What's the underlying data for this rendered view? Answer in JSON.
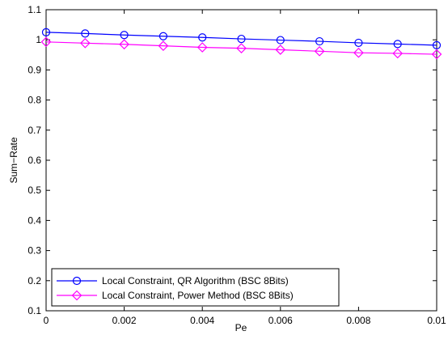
{
  "chart_data": {
    "type": "line",
    "title": "",
    "xlabel": "Pe",
    "ylabel": "Sum−Rate",
    "xlim": [
      0,
      0.01
    ],
    "ylim": [
      0.1,
      1.1
    ],
    "xticks": [
      0,
      0.002,
      0.004,
      0.006,
      0.008,
      0.01
    ],
    "xtick_labels": [
      "0",
      "0.002",
      "0.004",
      "0.006",
      "0.008",
      "0.01"
    ],
    "yticks": [
      0.1,
      0.2,
      0.3,
      0.4,
      0.5,
      0.6,
      0.7,
      0.8,
      0.9,
      1.0,
      1.1
    ],
    "ytick_labels": [
      "0.1",
      "0.2",
      "0.3",
      "0.4",
      "0.5",
      "0.6",
      "0.7",
      "0.8",
      "0.9",
      "1",
      "1.1"
    ],
    "grid": false,
    "legend_position": "bottom-left",
    "x": [
      0,
      0.001,
      0.002,
      0.003,
      0.004,
      0.005,
      0.006,
      0.007,
      0.008,
      0.009,
      0.01
    ],
    "series": [
      {
        "name": "Local Constraint, QR Algorithm (BSC 8Bits)",
        "color": "#0000ff",
        "marker": "circle",
        "values": [
          1.025,
          1.021,
          1.016,
          1.012,
          1.008,
          1.003,
          0.999,
          0.995,
          0.99,
          0.986,
          0.982
        ]
      },
      {
        "name": "Local Constraint, Power Method (BSC 8Bits)",
        "color": "#ff00ff",
        "marker": "diamond",
        "values": [
          0.993,
          0.989,
          0.985,
          0.98,
          0.975,
          0.972,
          0.967,
          0.962,
          0.957,
          0.955,
          0.952
        ]
      }
    ]
  }
}
